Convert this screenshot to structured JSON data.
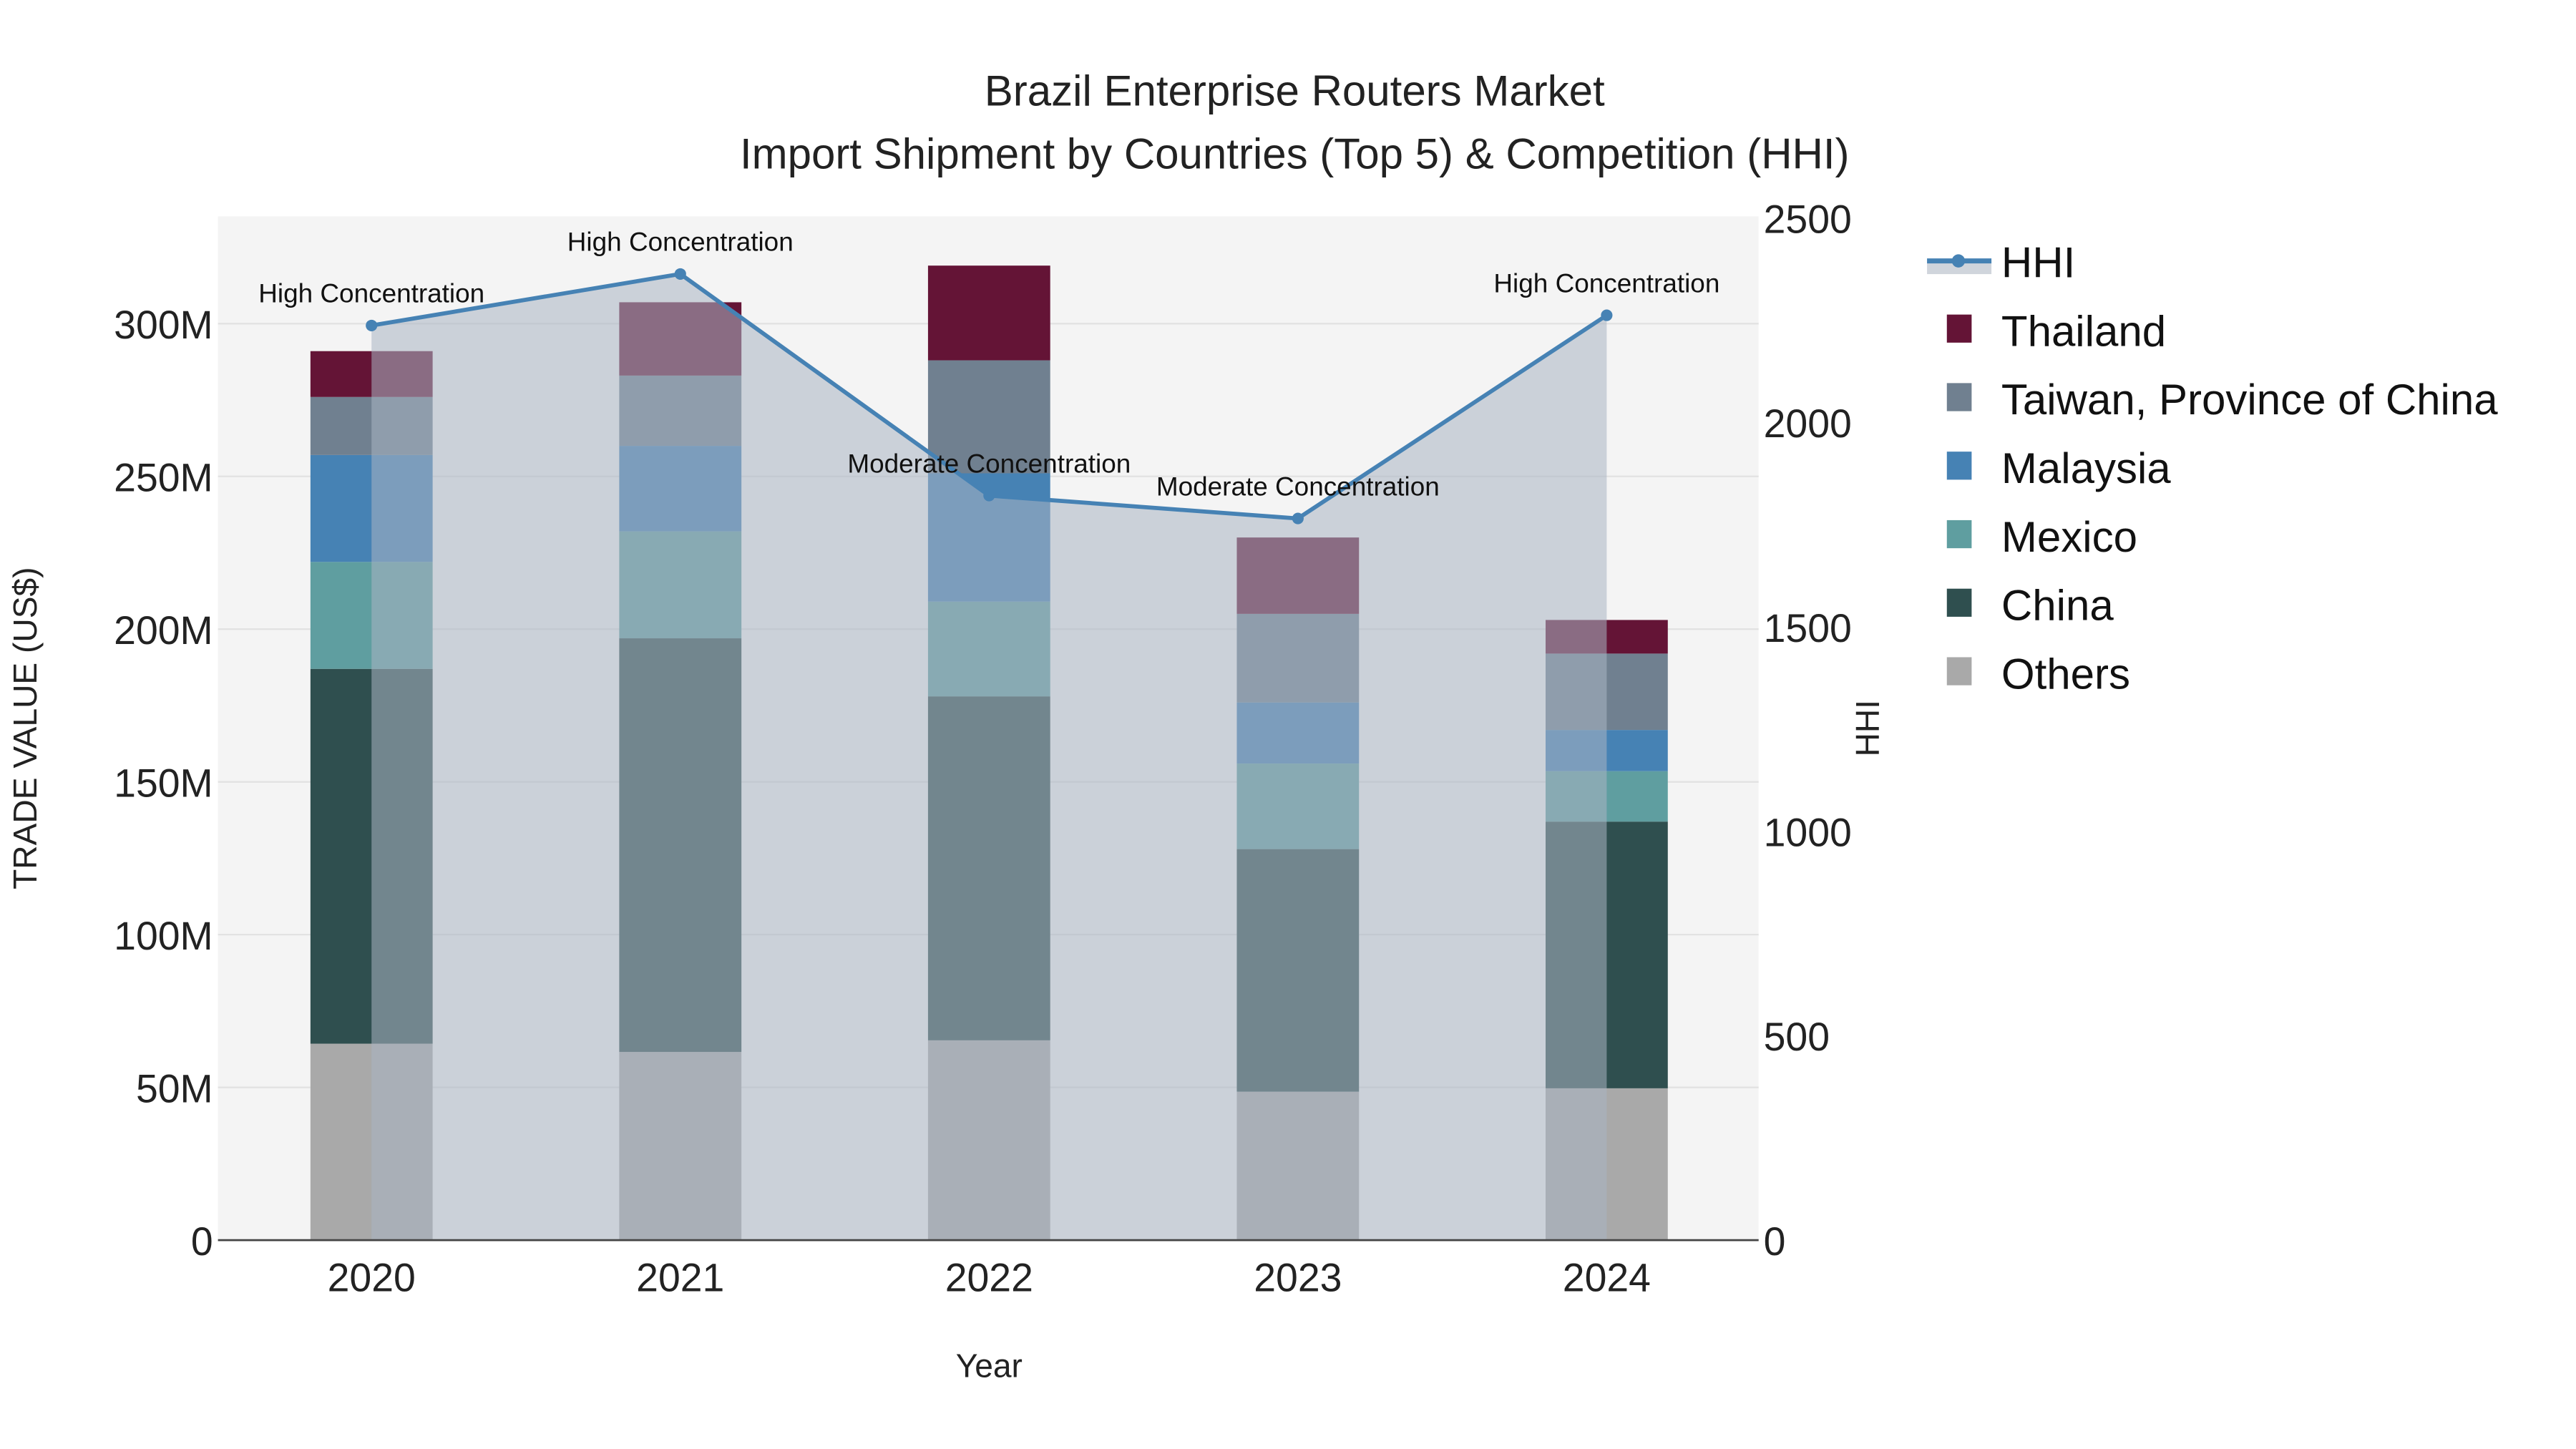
{
  "chart_data": {
    "type": "bar",
    "stacked": true,
    "title": "Brazil Enterprise Routers Market",
    "subtitle": "Import Shipment by Countries (Top 5) & Competition (HHI)",
    "xlabel": "Year",
    "ylabel": "TRADE VALUE (US$)",
    "y2label": "HHI",
    "categories": [
      "2020",
      "2021",
      "2022",
      "2023",
      "2024"
    ],
    "ylim": [
      0,
      335
    ],
    "yticks": [
      0,
      50,
      100,
      150,
      200,
      250,
      300
    ],
    "ytick_labels": [
      "0",
      "50M",
      "100M",
      "150M",
      "200M",
      "250M",
      "300M"
    ],
    "y2lim": [
      0,
      2500
    ],
    "y2ticks": [
      0,
      500,
      1000,
      1500,
      2000,
      2500
    ],
    "y2tick_labels": [
      "0",
      "500",
      "1000",
      "1500",
      "2000",
      "2500"
    ],
    "series": [
      {
        "name": "Others",
        "color": "#A9A9A9",
        "values": [
          64.3,
          61.6,
          65.4,
          48.6,
          49.7
        ]
      },
      {
        "name": "China",
        "color": "#2F4F4F",
        "values": [
          122.7,
          135.4,
          112.6,
          79.4,
          87.3
        ]
      },
      {
        "name": "Mexico",
        "color": "#5F9EA0",
        "values": [
          35,
          35,
          31,
          28,
          16.5
        ]
      },
      {
        "name": "Malaysia",
        "color": "#4682B4",
        "values": [
          35,
          28,
          42,
          20,
          13.5
        ]
      },
      {
        "name": "Taiwan, Province of China",
        "color": "#708090",
        "values": [
          19,
          23,
          37,
          29,
          25
        ]
      },
      {
        "name": "Thailand",
        "color": "#641436",
        "values": [
          15,
          24,
          31,
          25,
          11
        ]
      }
    ],
    "line_series": {
      "name": "HHI",
      "color": "#4682B4",
      "axis": "y2",
      "values": [
        2237,
        2363,
        1821,
        1765,
        2262
      ],
      "annotations": [
        "High Concentration",
        "High Concentration",
        "Moderate Concentration",
        "Moderate Concentration",
        "High Concentration"
      ]
    },
    "legend_order": [
      "HHI",
      "Thailand",
      "Taiwan, Province of China",
      "Malaysia",
      "Mexico",
      "China",
      "Others"
    ],
    "legend_placement": "right",
    "grid": true
  }
}
